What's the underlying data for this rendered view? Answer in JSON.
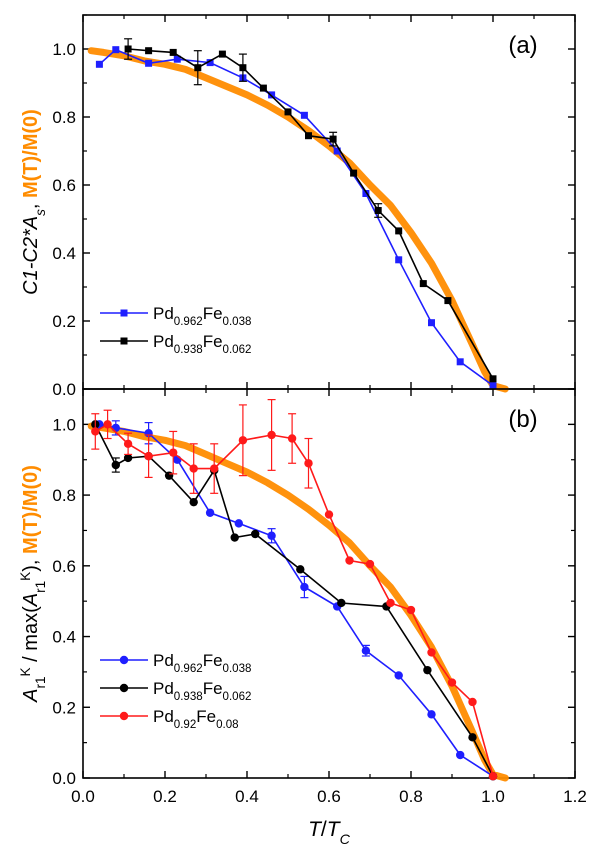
{
  "chart_data": [
    {
      "type": "line",
      "panel_label": "(a)",
      "ylabel_parts": [
        {
          "text": "C1-C2*",
          "italic": true,
          "color": "#000000"
        },
        {
          "text": "A",
          "italic": true,
          "color": "#000000"
        },
        {
          "text": "s",
          "italic": true,
          "sub": true,
          "color": "#000000"
        },
        {
          "text": ", ",
          "italic": false,
          "color": "#000000"
        },
        {
          "text": "M(T)/M(0)",
          "italic": false,
          "bold": true,
          "color": "#FF8C00"
        }
      ],
      "xlim": [
        0.0,
        1.2
      ],
      "ylim": [
        0.0,
        1.1
      ],
      "yticks": [
        "0.0",
        "0.2",
        "0.4",
        "0.6",
        "0.8",
        "1.0"
      ],
      "ytick_values": [
        0.0,
        0.2,
        0.4,
        0.6,
        0.8,
        1.0
      ],
      "legend_position": "bottom-left",
      "series": [
        {
          "name_parts": [
            {
              "text": "Pd"
            },
            {
              "text": "0.962",
              "sub": true
            },
            {
              "text": "Fe"
            },
            {
              "text": "0.038",
              "sub": true
            }
          ],
          "color": "#1F1FFF",
          "marker": "square",
          "x": [
            0.04,
            0.08,
            0.16,
            0.23,
            0.31,
            0.39,
            0.46,
            0.54,
            0.62,
            0.69,
            0.77,
            0.85,
            0.92,
            1.0
          ],
          "y": [
            0.955,
            0.998,
            0.958,
            0.97,
            0.96,
            0.915,
            0.865,
            0.805,
            0.7,
            0.575,
            0.38,
            0.195,
            0.08,
            0.01
          ],
          "yerr": [
            0.01,
            0.01,
            0.01,
            0.01,
            0.01,
            0.01,
            0.01,
            0.01,
            0.01,
            0.01,
            0.01,
            0.01,
            0.01,
            0.01
          ]
        },
        {
          "name_parts": [
            {
              "text": "Pd"
            },
            {
              "text": "0.938",
              "sub": true
            },
            {
              "text": "Fe"
            },
            {
              "text": "0.062",
              "sub": true
            }
          ],
          "color": "#000000",
          "marker": "square",
          "x": [
            0.11,
            0.16,
            0.22,
            0.28,
            0.34,
            0.39,
            0.44,
            0.5,
            0.55,
            0.61,
            0.66,
            0.72,
            0.77,
            0.83,
            0.89,
            1.0
          ],
          "y": [
            1.0,
            0.995,
            0.99,
            0.945,
            0.985,
            0.945,
            0.885,
            0.815,
            0.745,
            0.735,
            0.635,
            0.525,
            0.465,
            0.31,
            0.26,
            0.03
          ],
          "yerr": [
            0.03,
            0.01,
            0.01,
            0.05,
            0.01,
            0.04,
            0.01,
            0.01,
            0.01,
            0.02,
            0.01,
            0.02,
            0.01,
            0.01,
            0.01,
            0.01
          ]
        },
        {
          "name": "",
          "color": "#FF8C00",
          "marker": "thick-line",
          "x": [
            0.02,
            0.05,
            0.1,
            0.15,
            0.2,
            0.25,
            0.3,
            0.35,
            0.4,
            0.45,
            0.5,
            0.55,
            0.6,
            0.65,
            0.7,
            0.75,
            0.8,
            0.85,
            0.9,
            0.95,
            0.98,
            1.0,
            1.03
          ],
          "y": [
            0.995,
            0.99,
            0.98,
            0.965,
            0.955,
            0.94,
            0.915,
            0.89,
            0.865,
            0.835,
            0.8,
            0.76,
            0.715,
            0.665,
            0.6,
            0.54,
            0.46,
            0.37,
            0.26,
            0.13,
            0.05,
            0.01,
            0.0
          ]
        }
      ]
    },
    {
      "type": "line",
      "panel_label": "(b)",
      "ylabel_parts": [
        {
          "text": "A",
          "italic": true,
          "color": "#000000"
        },
        {
          "text": "r1",
          "italic": false,
          "sub": true,
          "color": "#000000"
        },
        {
          "text": "K",
          "italic": false,
          "sup": true,
          "color": "#000000"
        },
        {
          "text": " / max(",
          "italic": false,
          "color": "#000000"
        },
        {
          "text": "A",
          "italic": true,
          "color": "#000000"
        },
        {
          "text": "r1",
          "italic": false,
          "sub": true,
          "color": "#000000"
        },
        {
          "text": "K",
          "italic": false,
          "sup": true,
          "color": "#000000"
        },
        {
          "text": "), ",
          "italic": false,
          "color": "#000000"
        },
        {
          "text": "M(T)/M(0)",
          "italic": false,
          "bold": true,
          "color": "#FF8C00"
        }
      ],
      "xlabel_parts": [
        {
          "text": "T",
          "italic": true
        },
        {
          "text": "/",
          "italic": false
        },
        {
          "text": "T",
          "italic": true
        },
        {
          "text": "C",
          "italic": true,
          "sub": true
        }
      ],
      "xlim": [
        0.0,
        1.2
      ],
      "ylim": [
        0.0,
        1.1
      ],
      "xticks": [
        "0.0",
        "0.2",
        "0.4",
        "0.6",
        "0.8",
        "1.0",
        "1.2"
      ],
      "xtick_values": [
        0.0,
        0.2,
        0.4,
        0.6,
        0.8,
        1.0,
        1.2
      ],
      "yticks": [
        "0.0",
        "0.2",
        "0.4",
        "0.6",
        "0.8",
        "1.0"
      ],
      "ytick_values": [
        0.0,
        0.2,
        0.4,
        0.6,
        0.8,
        1.0
      ],
      "legend_position": "bottom-left",
      "series": [
        {
          "name_parts": [
            {
              "text": "Pd"
            },
            {
              "text": "0.962",
              "sub": true
            },
            {
              "text": "Fe"
            },
            {
              "text": "0.038",
              "sub": true
            }
          ],
          "color": "#1F1FFF",
          "marker": "circle",
          "x": [
            0.04,
            0.08,
            0.16,
            0.23,
            0.31,
            0.38,
            0.46,
            0.54,
            0.62,
            0.69,
            0.77,
            0.85,
            0.92,
            1.0
          ],
          "y": [
            1.0,
            0.99,
            0.975,
            0.9,
            0.75,
            0.72,
            0.685,
            0.54,
            0.485,
            0.36,
            0.29,
            0.18,
            0.065,
            0.005
          ],
          "yerr": [
            0.01,
            0.02,
            0.03,
            0.01,
            0.01,
            0.01,
            0.02,
            0.03,
            0.01,
            0.015,
            0.01,
            0.01,
            0.01,
            0.01
          ]
        },
        {
          "name_parts": [
            {
              "text": "Pd"
            },
            {
              "text": "0.938",
              "sub": true
            },
            {
              "text": "Fe"
            },
            {
              "text": "0.062",
              "sub": true
            }
          ],
          "color": "#000000",
          "marker": "circle",
          "x": [
            0.03,
            0.08,
            0.11,
            0.16,
            0.21,
            0.27,
            0.32,
            0.37,
            0.42,
            0.53,
            0.63,
            0.74,
            0.84,
            0.95,
            1.0
          ],
          "y": [
            1.0,
            0.885,
            0.905,
            0.91,
            0.855,
            0.78,
            0.87,
            0.68,
            0.69,
            0.59,
            0.495,
            0.485,
            0.305,
            0.115,
            0.005
          ],
          "yerr": [
            0.01,
            0.02,
            0.01,
            0.01,
            0.01,
            0.01,
            0.01,
            0.01,
            0.01,
            0.01,
            0.01,
            0.01,
            0.01,
            0.01,
            0.01
          ]
        },
        {
          "name_parts": [
            {
              "text": "Pd"
            },
            {
              "text": "0.92",
              "sub": true
            },
            {
              "text": "Fe"
            },
            {
              "text": "0.08",
              "sub": true
            }
          ],
          "color": "#FF1A1A",
          "marker": "circle",
          "x": [
            0.03,
            0.06,
            0.11,
            0.16,
            0.22,
            0.27,
            0.32,
            0.39,
            0.46,
            0.51,
            0.55,
            0.6,
            0.65,
            0.7,
            0.75,
            0.8,
            0.85,
            0.9,
            0.95,
            1.0
          ],
          "y": [
            0.98,
            1.0,
            0.945,
            0.91,
            0.92,
            0.875,
            0.875,
            0.955,
            0.97,
            0.96,
            0.89,
            0.745,
            0.615,
            0.605,
            0.495,
            0.475,
            0.355,
            0.27,
            0.215,
            0.005
          ],
          "yerr": [
            0.05,
            0.04,
            0.03,
            0.06,
            0.06,
            0.07,
            0.07,
            0.1,
            0.1,
            0.07,
            0.07,
            0.01,
            0.01,
            0.01,
            0.01,
            0.01,
            0.01,
            0.01,
            0.01,
            0.01
          ]
        },
        {
          "name": "",
          "color": "#FF8C00",
          "marker": "thick-line",
          "x": [
            0.02,
            0.05,
            0.1,
            0.15,
            0.2,
            0.25,
            0.3,
            0.35,
            0.4,
            0.45,
            0.5,
            0.55,
            0.6,
            0.65,
            0.7,
            0.75,
            0.8,
            0.85,
            0.9,
            0.95,
            0.98,
            1.0,
            1.03
          ],
          "y": [
            0.995,
            0.99,
            0.98,
            0.965,
            0.955,
            0.94,
            0.915,
            0.89,
            0.865,
            0.835,
            0.8,
            0.76,
            0.715,
            0.665,
            0.6,
            0.54,
            0.46,
            0.37,
            0.26,
            0.13,
            0.05,
            0.01,
            0.0
          ]
        }
      ]
    }
  ]
}
